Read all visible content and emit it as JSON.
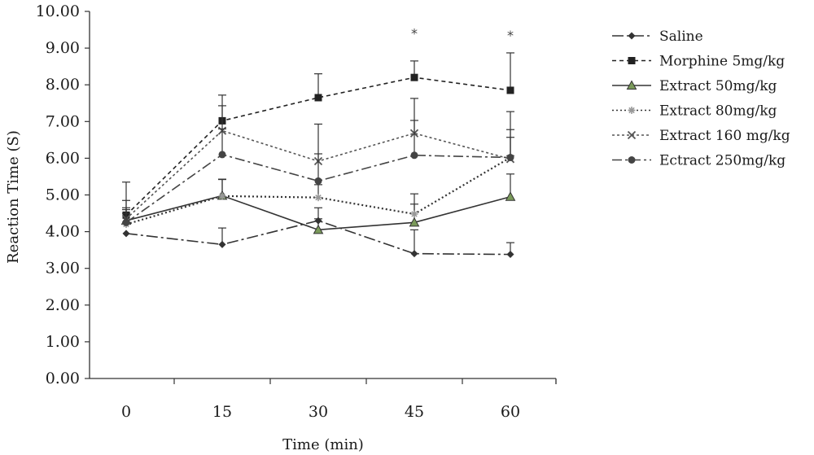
{
  "chart_data": {
    "type": "line",
    "title": "",
    "xlabel": "Time (min)",
    "ylabel": "Reaction Time (S)",
    "categories": [
      "0",
      "15",
      "30",
      "45",
      "60"
    ],
    "ylim": [
      0,
      10
    ],
    "yticks": [
      "0.00",
      "1.00",
      "2.00",
      "3.00",
      "4.00",
      "5.00",
      "6.00",
      "7.00",
      "8.00",
      "9.00",
      "10.00"
    ],
    "grid": false,
    "legend_position": "right",
    "annotations": [
      {
        "x": "45",
        "y": 9.5,
        "text": "*"
      },
      {
        "x": "60",
        "y": 9.45,
        "text": "*"
      }
    ],
    "series": [
      {
        "name": "Saline",
        "values": [
          3.95,
          3.65,
          4.3,
          3.4,
          3.38
        ],
        "errors": [
          0,
          0.45,
          0.35,
          0.65,
          0.32
        ],
        "color": "#333333",
        "dash": "14,4,3,4",
        "marker": "diamond"
      },
      {
        "name": "Morphine 5mg/kg",
        "values": [
          4.45,
          7.02,
          7.65,
          8.2,
          7.85
        ],
        "errors": [
          0.4,
          0.7,
          0.65,
          0.45,
          1.02
        ],
        "color": "#222222",
        "dash": "5,4",
        "marker": "square"
      },
      {
        "name": "Extract 50mg/kg",
        "values": [
          4.3,
          4.98,
          4.05,
          4.25,
          4.95
        ],
        "errors": [
          0.3,
          0.45,
          0.3,
          0.5,
          0.62
        ],
        "color": "#333333",
        "dash": "",
        "marker": "triangle"
      },
      {
        "name": "Extract 80mg/kg",
        "values": [
          4.2,
          4.97,
          4.93,
          4.48,
          6.02
        ],
        "errors": [
          0.3,
          0.45,
          0.35,
          0.55,
          0.55
        ],
        "color": "#333333",
        "dash": "2,3",
        "marker": "star"
      },
      {
        "name": "Extract 160 mg/kg",
        "values": [
          4.35,
          6.75,
          5.92,
          6.68,
          5.98
        ],
        "errors": [
          0.3,
          0.68,
          0.2,
          0.95,
          0.8
        ],
        "color": "#555555",
        "dash": "3,3",
        "marker": "x"
      },
      {
        "name": "Ectract 250mg/kg",
        "values": [
          4.25,
          6.1,
          5.38,
          6.08,
          6.02
        ],
        "errors": [
          1.1,
          0.7,
          1.55,
          0.95,
          1.25
        ],
        "color": "#444444",
        "dash": "12,4,3,4",
        "marker": "circle"
      }
    ]
  }
}
